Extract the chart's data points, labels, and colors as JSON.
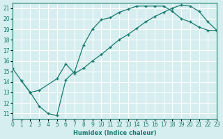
{
  "xlabel": "Humidex (Indice chaleur)",
  "bg_color": "#d6eef0",
  "line_color": "#1a7a6e",
  "grid_color": "#ffffff",
  "xlim": [
    0,
    23
  ],
  "ylim": [
    10.5,
    21.5
  ],
  "xticks": [
    0,
    1,
    2,
    3,
    4,
    5,
    6,
    7,
    8,
    9,
    10,
    11,
    12,
    13,
    14,
    15,
    16,
    17,
    18,
    19,
    20,
    21,
    22,
    23
  ],
  "yticks": [
    11,
    12,
    13,
    14,
    15,
    16,
    17,
    18,
    19,
    20,
    21
  ],
  "series1_x": [
    0,
    1,
    2,
    3,
    4,
    5,
    6,
    7,
    8,
    9,
    10,
    11,
    12,
    13,
    14,
    15,
    16,
    17,
    18,
    19,
    20,
    21,
    22,
    23
  ],
  "series1_y": [
    15.3,
    14.1,
    13.0,
    11.7,
    11.0,
    10.8,
    14.2,
    15.0,
    17.5,
    19.0,
    19.9,
    20.1,
    20.6,
    20.9,
    21.2,
    21.2,
    21.2,
    21.2,
    20.7,
    20.0,
    19.7,
    19.2,
    18.9,
    18.9
  ],
  "series2_x": [
    1,
    2,
    3,
    5,
    6,
    7,
    8,
    9,
    10,
    11,
    12,
    13,
    14,
    15,
    16,
    17,
    18,
    19,
    20,
    21,
    22,
    23
  ],
  "series2_y": [
    14.1,
    13.0,
    13.2,
    14.3,
    15.7,
    14.8,
    15.3,
    16.0,
    16.6,
    17.3,
    18.0,
    18.5,
    19.1,
    19.7,
    20.2,
    20.6,
    21.0,
    21.3,
    21.2,
    20.7,
    19.7,
    18.9
  ]
}
